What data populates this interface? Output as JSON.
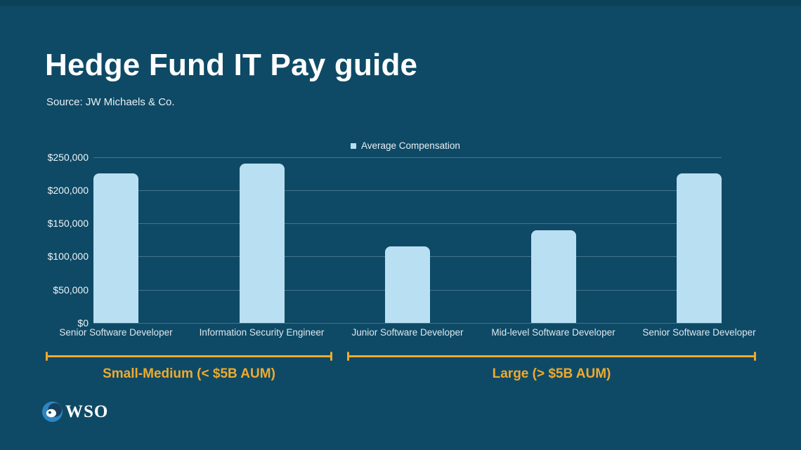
{
  "page": {
    "title": "Hedge Fund IT Pay guide",
    "source": "Source: JW Michaels & Co."
  },
  "legend": {
    "label": "Average Compensation"
  },
  "logo": {
    "text": "WSO"
  },
  "colors": {
    "background": "#0e4a66",
    "bar": "#b9dff2",
    "accent_gold": "#efaa2d",
    "gridline": "rgba(210,228,238,0.28)",
    "text": "#ffffff"
  },
  "chart_data": {
    "type": "bar",
    "title": "Hedge Fund IT Pay guide",
    "subtitle": "Source: JW Michaels & Co.",
    "series_name": "Average Compensation",
    "categories": [
      "Senior Software Developer",
      "Information Security Engineer",
      "Junior Software Developer",
      "Mid-level Software Developer",
      "Senior Software Developer"
    ],
    "values": [
      225000,
      240000,
      115000,
      140000,
      225000
    ],
    "ylim": [
      0,
      250000
    ],
    "ytick_step": 50000,
    "ytick_labels": [
      "$0",
      "$50,000",
      "$100,000",
      "$150,000",
      "$200,000",
      "$250,000"
    ],
    "grid": "horizontal",
    "legend_position": "top",
    "groups": [
      {
        "label": "Small-Medium (< $5B AUM)",
        "categories_covered": [
          0,
          1
        ]
      },
      {
        "label": "Large (> $5B AUM)",
        "categories_covered": [
          2,
          3,
          4
        ]
      }
    ]
  }
}
